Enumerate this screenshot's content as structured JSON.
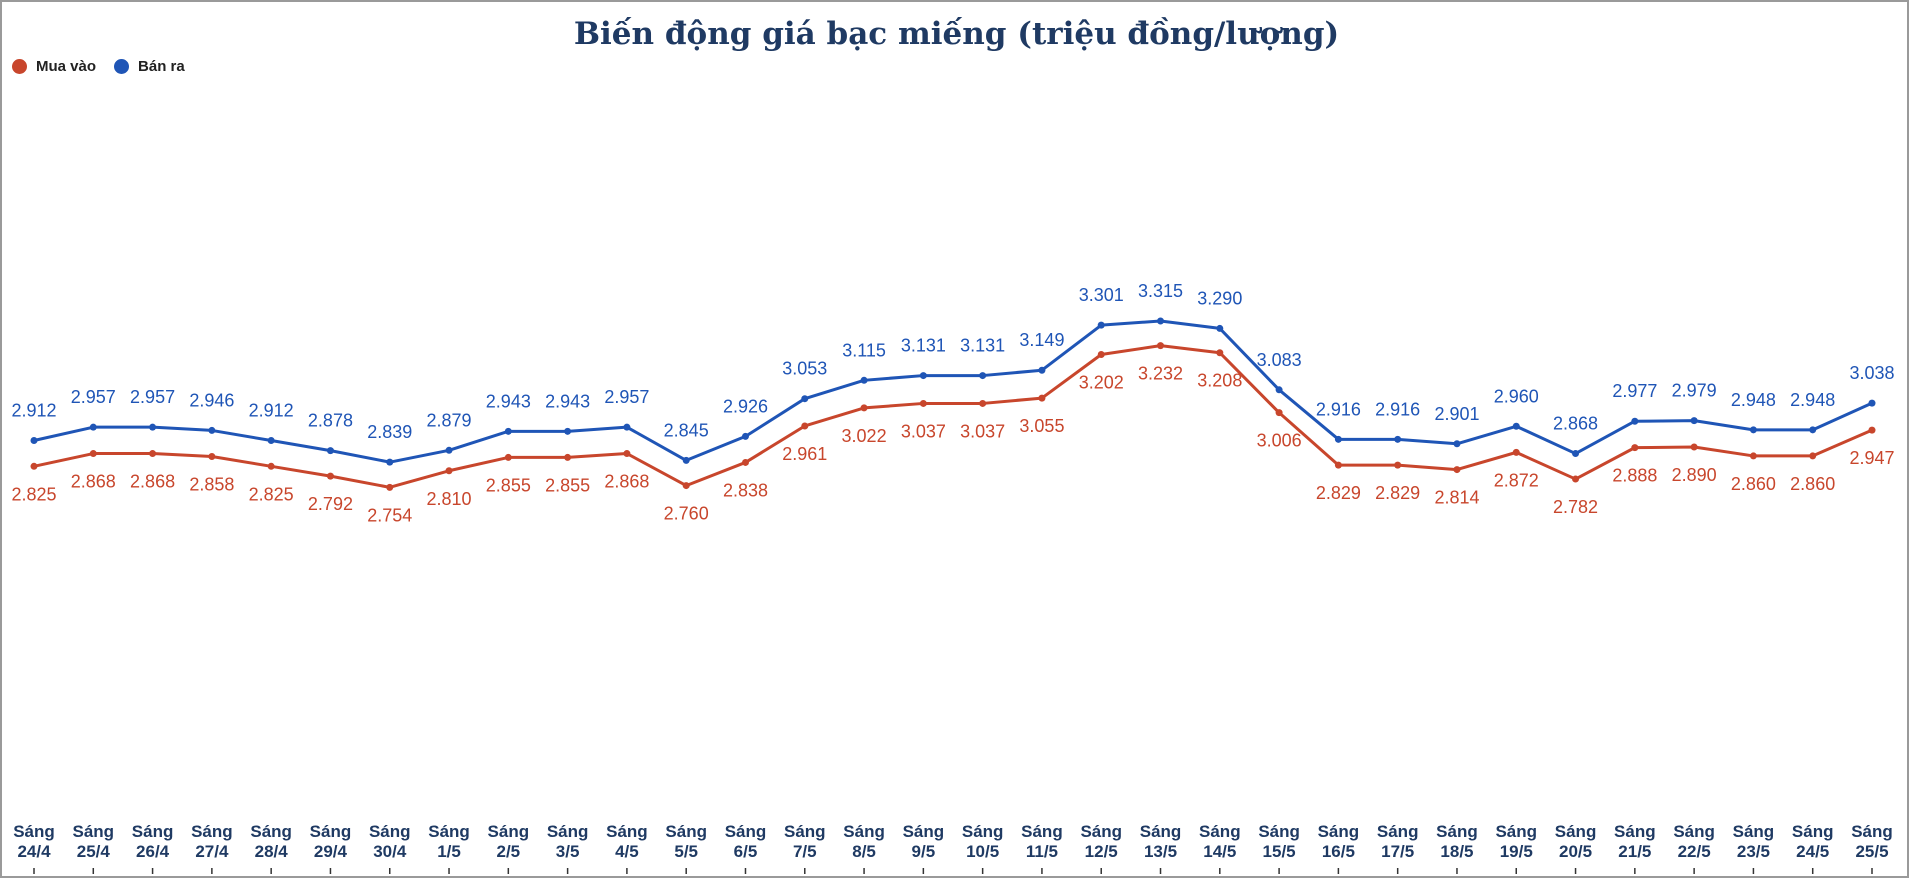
{
  "chart_data": {
    "type": "line",
    "title": "Biến động giá bạc miếng (triệu đồng/lượng)",
    "xlabel": "",
    "ylabel": "",
    "grid": false,
    "legend_position": "top-left",
    "ylim": [
      2.3,
      3.75
    ],
    "categories": [
      [
        "Sáng",
        "24/4"
      ],
      [
        "Sáng",
        "25/4"
      ],
      [
        "Sáng",
        "26/4"
      ],
      [
        "Sáng",
        "27/4"
      ],
      [
        "Sáng",
        "28/4"
      ],
      [
        "Sáng",
        "29/4"
      ],
      [
        "Sáng",
        "30/4"
      ],
      [
        "Sáng",
        "1/5"
      ],
      [
        "Sáng",
        "2/5"
      ],
      [
        "Sáng",
        "3/5"
      ],
      [
        "Sáng",
        "4/5"
      ],
      [
        "Sáng",
        "5/5"
      ],
      [
        "Sáng",
        "6/5"
      ],
      [
        "Sáng",
        "7/5"
      ],
      [
        "Sáng",
        "8/5"
      ],
      [
        "Sáng",
        "9/5"
      ],
      [
        "Sáng",
        "10/5"
      ],
      [
        "Sáng",
        "11/5"
      ],
      [
        "Sáng",
        "12/5"
      ],
      [
        "Sáng",
        "13/5"
      ],
      [
        "Sáng",
        "14/5"
      ],
      [
        "Sáng",
        "15/5"
      ],
      [
        "Sáng",
        "16/5"
      ],
      [
        "Sáng",
        "17/5"
      ],
      [
        "Sáng",
        "18/5"
      ],
      [
        "Sáng",
        "19/5"
      ],
      [
        "Sáng",
        "20/5"
      ],
      [
        "Sáng",
        "21/5"
      ],
      [
        "Sáng",
        "22/5"
      ],
      [
        "Sáng",
        "23/5"
      ],
      [
        "Sáng",
        "24/5"
      ],
      [
        "Sáng",
        "25/5"
      ]
    ],
    "series": [
      {
        "name": "Mua vào",
        "color": "#c8462c",
        "label_position": "below",
        "values": [
          2.825,
          2.868,
          2.868,
          2.858,
          2.825,
          2.792,
          2.754,
          2.81,
          2.855,
          2.855,
          2.868,
          2.76,
          2.838,
          2.961,
          3.022,
          3.037,
          3.037,
          3.055,
          3.202,
          3.232,
          3.208,
          3.006,
          2.829,
          2.829,
          2.814,
          2.872,
          2.782,
          2.888,
          2.89,
          2.86,
          2.86,
          2.947
        ],
        "labels": [
          "2.825",
          "2.868",
          "2.868",
          "2.858",
          "2.825",
          "2.792",
          "2.754",
          "2.810",
          "2.855",
          "2.855",
          "2.868",
          "2.760",
          "2.838",
          "2.961",
          "3.022",
          "3.037",
          "3.037",
          "3.055",
          "3.202",
          "3.232",
          "3.208",
          "3.006",
          "2.829",
          "2.829",
          "2.814",
          "2.872",
          "2.782",
          "2.888",
          "2.890",
          "2.860",
          "2.860",
          "2.947"
        ]
      },
      {
        "name": "Bán ra",
        "color": "#1f55b6",
        "label_position": "above",
        "values": [
          2.912,
          2.957,
          2.957,
          2.946,
          2.912,
          2.878,
          2.839,
          2.879,
          2.943,
          2.943,
          2.957,
          2.845,
          2.926,
          3.053,
          3.115,
          3.131,
          3.131,
          3.149,
          3.301,
          3.315,
          3.29,
          3.083,
          2.916,
          2.916,
          2.901,
          2.96,
          2.868,
          2.977,
          2.979,
          2.948,
          2.948,
          3.038
        ],
        "labels": [
          "2.912",
          "2.957",
          "2.957",
          "2.946",
          "2.912",
          "2.878",
          "2.839",
          "2.879",
          "2.943",
          "2.943",
          "2.957",
          "2.845",
          "2.926",
          "3.053",
          "3.115",
          "3.131",
          "3.131",
          "3.149",
          "3.301",
          "3.315",
          "3.290",
          "3.083",
          "2.916",
          "2.916",
          "2.901",
          "2.960",
          "2.868",
          "2.977",
          "2.979",
          "2.948",
          "2.948",
          "3.038"
        ]
      }
    ]
  }
}
